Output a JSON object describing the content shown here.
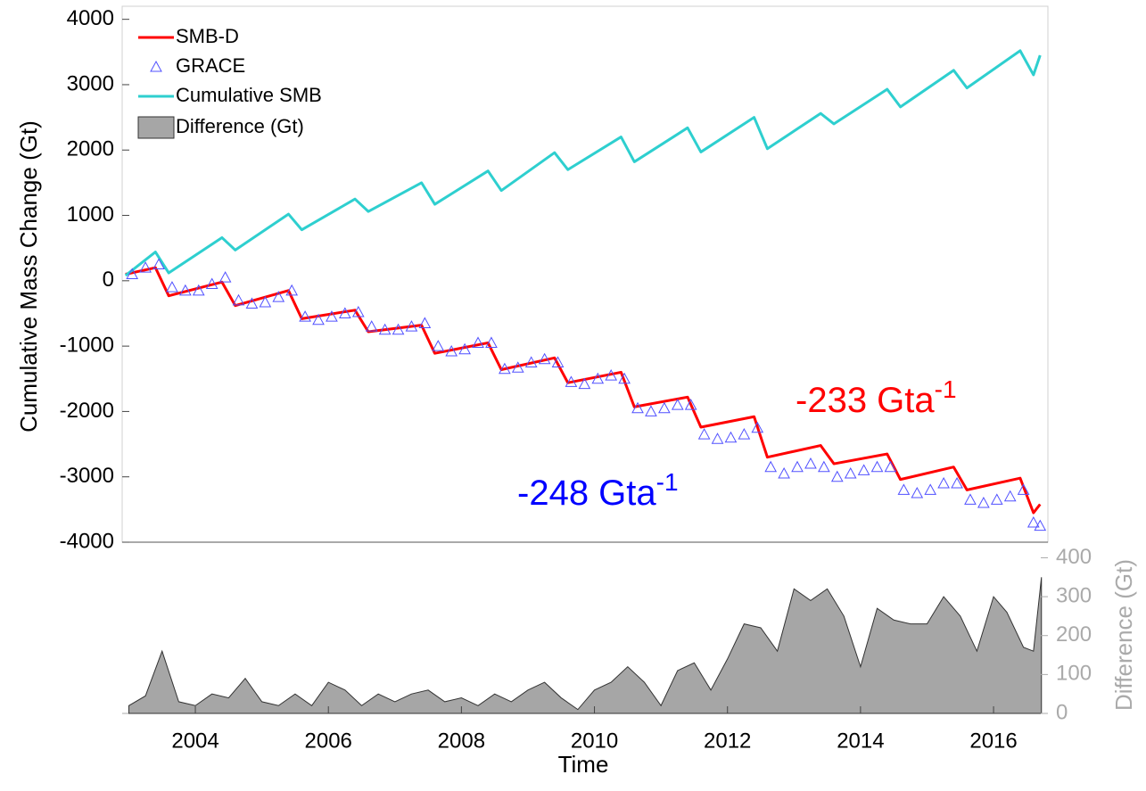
{
  "chart_data": [
    {
      "type": "line",
      "ylabel": "Cumulative Mass Change (Gt)",
      "xlim": [
        2002.9,
        2016.75
      ],
      "ylim": [
        -4000,
        4200
      ],
      "yticks": [
        -4000,
        -3000,
        -2000,
        -1000,
        0,
        1000,
        2000,
        3000,
        4000
      ],
      "legend": "upper left",
      "series": [
        {
          "name": "SMB-D",
          "type": "line",
          "color": "#ff0000",
          "x": [
            2002.95,
            2003.4,
            2003.6,
            2004.4,
            2004.6,
            2005.4,
            2005.6,
            2006.4,
            2006.6,
            2007.4,
            2007.6,
            2008.4,
            2008.6,
            2009.4,
            2009.6,
            2010.4,
            2010.6,
            2011.4,
            2011.6,
            2012.4,
            2012.6,
            2013.4,
            2013.6,
            2014.4,
            2014.6,
            2015.4,
            2015.6,
            2016.4,
            2016.6,
            2016.7
          ],
          "values": [
            100,
            200,
            -230,
            -20,
            -380,
            -150,
            -580,
            -450,
            -780,
            -680,
            -1110,
            -950,
            -1360,
            -1180,
            -1560,
            -1400,
            -1930,
            -1780,
            -2240,
            -2080,
            -2700,
            -2520,
            -2800,
            -2650,
            -3040,
            -2850,
            -3200,
            -3020,
            -3550,
            -3420
          ]
        },
        {
          "name": "GRACE",
          "type": "scatter",
          "color": "#5050ff",
          "x": [
            2003.05,
            2003.25,
            2003.45,
            2003.65,
            2003.85,
            2004.05,
            2004.25,
            2004.45,
            2004.65,
            2004.85,
            2005.05,
            2005.25,
            2005.45,
            2005.65,
            2005.85,
            2006.05,
            2006.25,
            2006.45,
            2006.65,
            2006.85,
            2007.05,
            2007.25,
            2007.45,
            2007.65,
            2007.85,
            2008.05,
            2008.25,
            2008.45,
            2008.65,
            2008.85,
            2009.05,
            2009.25,
            2009.45,
            2009.65,
            2009.85,
            2010.05,
            2010.25,
            2010.45,
            2010.65,
            2010.85,
            2011.05,
            2011.25,
            2011.45,
            2011.65,
            2011.85,
            2012.05,
            2012.25,
            2012.45,
            2012.65,
            2012.85,
            2013.05,
            2013.25,
            2013.45,
            2013.65,
            2013.85,
            2014.05,
            2014.25,
            2014.45,
            2014.65,
            2014.85,
            2015.05,
            2015.25,
            2015.45,
            2015.65,
            2015.85,
            2016.05,
            2016.25,
            2016.45,
            2016.6,
            2016.7
          ],
          "values": [
            100,
            200,
            250,
            -100,
            -150,
            -150,
            -50,
            50,
            -300,
            -350,
            -330,
            -250,
            -150,
            -550,
            -600,
            -550,
            -500,
            -480,
            -700,
            -750,
            -750,
            -700,
            -650,
            -1000,
            -1080,
            -1050,
            -950,
            -950,
            -1350,
            -1330,
            -1250,
            -1200,
            -1250,
            -1550,
            -1580,
            -1500,
            -1450,
            -1500,
            -1950,
            -2000,
            -1950,
            -1900,
            -1900,
            -2350,
            -2420,
            -2400,
            -2350,
            -2250,
            -2850,
            -2950,
            -2850,
            -2800,
            -2850,
            -3000,
            -2950,
            -2900,
            -2850,
            -2850,
            -3200,
            -3250,
            -3200,
            -3100,
            -3100,
            -3350,
            -3400,
            -3350,
            -3300,
            -3200,
            -3700,
            -3750
          ]
        },
        {
          "name": "Cumulative SMB",
          "type": "line",
          "color": "#2ecfcf",
          "x": [
            2002.95,
            2003.4,
            2003.6,
            2004.4,
            2004.6,
            2005.4,
            2005.6,
            2006.4,
            2006.6,
            2007.4,
            2007.6,
            2008.4,
            2008.6,
            2009.4,
            2009.6,
            2010.4,
            2010.6,
            2011.4,
            2011.6,
            2012.4,
            2012.6,
            2013.4,
            2013.6,
            2014.4,
            2014.6,
            2015.4,
            2015.6,
            2016.4,
            2016.6,
            2016.7
          ],
          "values": [
            80,
            440,
            120,
            660,
            470,
            1020,
            780,
            1250,
            1060,
            1500,
            1170,
            1680,
            1380,
            1960,
            1700,
            2200,
            1820,
            2340,
            1970,
            2500,
            2020,
            2560,
            2400,
            2930,
            2660,
            3220,
            2950,
            3520,
            3150,
            3450
          ]
        }
      ],
      "annotations": [
        {
          "text": "-233 Gta",
          "superscript": "-1",
          "color": "#ff0000"
        },
        {
          "text": "-248 Gta",
          "superscript": "-1",
          "color": "#0000ff"
        }
      ]
    },
    {
      "type": "area",
      "xlabel": "Time",
      "ylabel": "Difference (Gt)",
      "xlim": [
        2002.9,
        2016.75
      ],
      "xticks": [
        2004,
        2006,
        2008,
        2010,
        2012,
        2014,
        2016
      ],
      "ylim": [
        0,
        440
      ],
      "yticks": [
        0,
        100,
        200,
        300,
        400
      ],
      "series": [
        {
          "name": "Difference (Gt)",
          "color": "#a6a6a6",
          "x": [
            2003.0,
            2003.25,
            2003.5,
            2003.75,
            2004.0,
            2004.25,
            2004.5,
            2004.75,
            2005.0,
            2005.25,
            2005.5,
            2005.75,
            2006.0,
            2006.25,
            2006.5,
            2006.75,
            2007.0,
            2007.25,
            2007.5,
            2007.75,
            2008.0,
            2008.25,
            2008.5,
            2008.75,
            2009.0,
            2009.25,
            2009.5,
            2009.75,
            2010.0,
            2010.25,
            2010.5,
            2010.75,
            2011.0,
            2011.25,
            2011.5,
            2011.75,
            2012.0,
            2012.25,
            2012.5,
            2012.75,
            2013.0,
            2013.25,
            2013.5,
            2013.75,
            2014.0,
            2014.25,
            2014.5,
            2014.75,
            2015.0,
            2015.25,
            2015.5,
            2015.75,
            2016.0,
            2016.2,
            2016.45,
            2016.6,
            2016.72
          ],
          "values": [
            20,
            45,
            160,
            30,
            20,
            50,
            40,
            90,
            30,
            20,
            50,
            20,
            80,
            60,
            20,
            50,
            30,
            50,
            60,
            30,
            40,
            20,
            50,
            30,
            60,
            80,
            40,
            10,
            60,
            80,
            120,
            80,
            20,
            110,
            130,
            60,
            140,
            230,
            220,
            160,
            320,
            290,
            320,
            250,
            120,
            270,
            240,
            230,
            230,
            300,
            250,
            160,
            300,
            260,
            170,
            160,
            350
          ]
        }
      ]
    }
  ]
}
